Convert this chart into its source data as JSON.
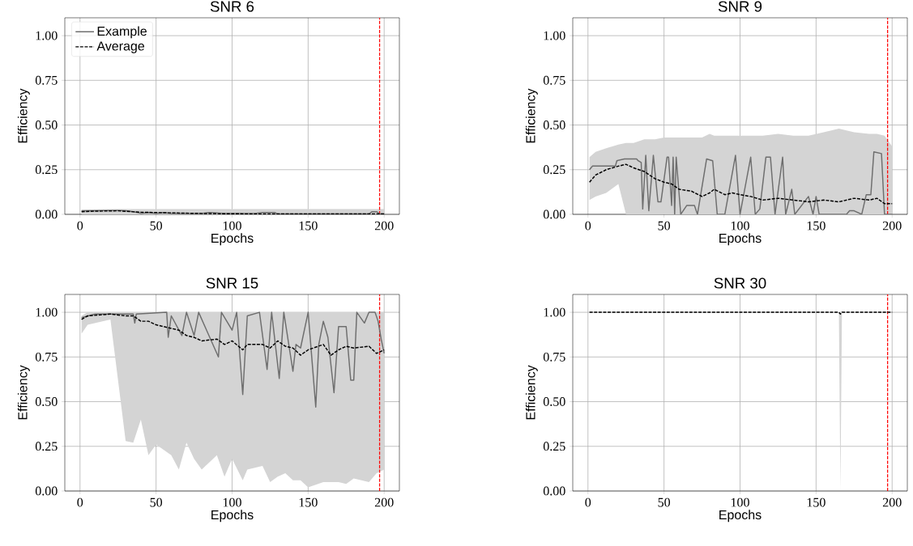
{
  "chart_data": [
    {
      "type": "line",
      "title": "SNR 6",
      "xlabel": "Epochs",
      "ylabel": "Efficiency",
      "xlim": [
        -10,
        210
      ],
      "ylim": [
        0,
        1.1
      ],
      "xticks": [
        0,
        50,
        100,
        150,
        200
      ],
      "yticks": [
        {
          "value": 0,
          "label": "0.00"
        },
        {
          "value": 0.25,
          "label": "0.25"
        },
        {
          "value": 0.5,
          "label": "0.50"
        },
        {
          "value": 0.75,
          "label": "0.75"
        },
        {
          "value": 1,
          "label": "1.00"
        }
      ],
      "grid": true,
      "legend": "top left",
      "ref_lines": [
        {
          "axis": "x",
          "value": 197,
          "color": "#ff0000",
          "line_style": "dashed"
        }
      ],
      "series": [
        {
          "name": "Example",
          "color": "#6e6e6e",
          "line_style": "solid",
          "x": [
            1,
            10,
            20,
            25,
            30,
            35,
            38,
            40,
            45,
            50,
            55,
            60,
            65,
            80,
            85,
            95,
            100,
            115,
            120,
            128,
            130,
            150,
            190,
            192,
            195,
            197,
            200
          ],
          "values": [
            0.02,
            0.02,
            0.022,
            0.022,
            0.02,
            0.015,
            0.01,
            0.005,
            0.01,
            0.005,
            0.01,
            0.005,
            0.005,
            0.005,
            0.01,
            0.005,
            0.005,
            0.005,
            0.01,
            0.01,
            0.002,
            0.002,
            0.002,
            0.015,
            0.015,
            0.002,
            0.002
          ]
        },
        {
          "name": "Average",
          "color": "#000000",
          "line_style": "dashed",
          "x": [
            1,
            10,
            25,
            40,
            60,
            80,
            100,
            150,
            200
          ],
          "values": [
            0.015,
            0.018,
            0.02,
            0.012,
            0.008,
            0.005,
            0.003,
            0.002,
            0.002
          ],
          "lower": [
            0,
            0,
            0,
            0,
            0,
            0,
            0,
            0,
            0
          ],
          "upper": [
            0.025,
            0.028,
            0.03,
            0.03,
            0.03,
            0.03,
            0.03,
            0.03,
            0.03
          ]
        }
      ]
    },
    {
      "type": "line",
      "title": "SNR 9",
      "xlabel": "Epochs",
      "ylabel": "Efficiency",
      "xlim": [
        -10,
        210
      ],
      "ylim": [
        0,
        1.1
      ],
      "xticks": [
        0,
        50,
        100,
        150,
        200
      ],
      "yticks": [
        {
          "value": 0,
          "label": "0.00"
        },
        {
          "value": 0.25,
          "label": "0.25"
        },
        {
          "value": 0.5,
          "label": "0.50"
        },
        {
          "value": 0.75,
          "label": "0.75"
        },
        {
          "value": 1,
          "label": "1.00"
        }
      ],
      "grid": true,
      "ref_lines": [
        {
          "axis": "x",
          "value": 197,
          "color": "#ff0000",
          "line_style": "dashed"
        }
      ],
      "series": [
        {
          "color": "#6e6e6e",
          "line_style": "solid",
          "x": [
            1,
            3,
            18,
            19,
            24,
            32,
            33,
            35,
            36,
            38,
            40,
            43,
            46,
            48,
            52,
            53,
            55,
            56,
            57,
            58,
            61,
            65,
            70,
            72,
            78,
            82,
            85,
            90,
            97,
            100,
            107,
            110,
            113,
            117,
            120,
            123,
            128,
            130,
            134,
            136,
            145,
            148,
            150,
            152,
            170,
            172,
            175,
            180,
            183,
            186,
            188,
            193,
            195,
            200
          ],
          "values": [
            0.25,
            0.27,
            0.27,
            0.3,
            0.31,
            0.31,
            0.3,
            0.29,
            0.03,
            0.33,
            0.02,
            0.33,
            0.07,
            0.07,
            0.32,
            0.32,
            0.05,
            0.32,
            0,
            0.32,
            0,
            0.05,
            0.05,
            0,
            0.31,
            0.3,
            0,
            0,
            0.33,
            0,
            0.32,
            0,
            0.03,
            0.32,
            0.32,
            0,
            0.32,
            0,
            0.14,
            0,
            0.1,
            0,
            0.1,
            0,
            0,
            0.02,
            0.02,
            0,
            0.11,
            0.11,
            0.35,
            0.34,
            0,
            0
          ]
        },
        {
          "color": "#000000",
          "line_style": "dashed",
          "x": [
            1,
            5,
            12,
            20,
            25,
            30,
            37,
            44,
            50,
            55,
            60,
            68,
            75,
            80,
            83,
            90,
            95,
            100,
            107,
            115,
            125,
            135,
            145,
            155,
            165,
            175,
            185,
            190,
            195,
            200
          ],
          "values": [
            0.18,
            0.22,
            0.25,
            0.27,
            0.28,
            0.26,
            0.24,
            0.2,
            0.18,
            0.17,
            0.14,
            0.13,
            0.1,
            0.12,
            0.14,
            0.11,
            0.12,
            0.11,
            0.1,
            0.08,
            0.09,
            0.08,
            0.07,
            0.08,
            0.07,
            0.09,
            0.08,
            0.09,
            0.06,
            0.06
          ],
          "lower": [
            0.08,
            0.1,
            0.12,
            0.17,
            0,
            0,
            0,
            0,
            0,
            0,
            0,
            0,
            0,
            0,
            0,
            0,
            0,
            0,
            0,
            0,
            0,
            0,
            0,
            0,
            0,
            0,
            0,
            0,
            0,
            0
          ],
          "upper": [
            0.32,
            0.35,
            0.37,
            0.39,
            0.4,
            0.4,
            0.42,
            0.42,
            0.43,
            0.43,
            0.43,
            0.43,
            0.43,
            0.45,
            0.44,
            0.44,
            0.44,
            0.44,
            0.44,
            0.44,
            0.45,
            0.44,
            0.44,
            0.46,
            0.48,
            0.46,
            0.45,
            0.45,
            0.44,
            0.38
          ]
        }
      ]
    },
    {
      "type": "line",
      "title": "SNR 15",
      "xlabel": "Epochs",
      "ylabel": "Efficiency",
      "xlim": [
        -10,
        210
      ],
      "ylim": [
        0,
        1.1
      ],
      "xticks": [
        0,
        50,
        100,
        150,
        200
      ],
      "yticks": [
        {
          "value": 0,
          "label": "0.00"
        },
        {
          "value": 0.25,
          "label": "0.25"
        },
        {
          "value": 0.5,
          "label": "0.50"
        },
        {
          "value": 0.75,
          "label": "0.75"
        },
        {
          "value": 1,
          "label": "1.00"
        }
      ],
      "grid": true,
      "ref_lines": [
        {
          "axis": "x",
          "value": 197,
          "color": "#ff0000",
          "line_style": "dashed"
        }
      ],
      "series": [
        {
          "color": "#6e6e6e",
          "line_style": "solid",
          "x": [
            1,
            10,
            35,
            36,
            37,
            57,
            58,
            60,
            67,
            70,
            75,
            78,
            91,
            93,
            100,
            103,
            107,
            110,
            118,
            123,
            126,
            131,
            134,
            140,
            142,
            145,
            150,
            155,
            157,
            160,
            163,
            167,
            170,
            175,
            178,
            180,
            182,
            187,
            190,
            194,
            196,
            198,
            200
          ],
          "values": [
            0.97,
            0.99,
            0.99,
            0.94,
            0.99,
            1,
            0.86,
            0.98,
            0.87,
            1,
            0.87,
            1,
            0.75,
            1,
            0.9,
            1,
            0.54,
            0.98,
            1,
            0.68,
            1,
            0.63,
            1,
            0.67,
            0.82,
            0.8,
            1,
            0.47,
            0.82,
            0.95,
            0.86,
            0.55,
            0.92,
            0.92,
            0.62,
            0.62,
            1,
            0.94,
            1,
            1,
            0.95,
            0.85,
            0.77
          ]
        },
        {
          "color": "#000000",
          "line_style": "dashed",
          "x": [
            1,
            5,
            20,
            30,
            35,
            40,
            45,
            50,
            60,
            65,
            70,
            75,
            80,
            90,
            95,
            100,
            107,
            110,
            120,
            125,
            130,
            135,
            140,
            145,
            150,
            160,
            165,
            170,
            175,
            180,
            190,
            195,
            200
          ],
          "values": [
            0.96,
            0.98,
            0.99,
            0.98,
            0.98,
            0.95,
            0.95,
            0.93,
            0.91,
            0.9,
            0.87,
            0.86,
            0.84,
            0.85,
            0.82,
            0.84,
            0.79,
            0.82,
            0.82,
            0.8,
            0.84,
            0.81,
            0.8,
            0.76,
            0.79,
            0.82,
            0.76,
            0.79,
            0.81,
            0.8,
            0.81,
            0.77,
            0.79
          ],
          "lower": [
            0.88,
            0.93,
            0.96,
            0.28,
            0.27,
            0.4,
            0.2,
            0.26,
            0.2,
            0.12,
            0.27,
            0.18,
            0.12,
            0.2,
            0.08,
            0.18,
            0.06,
            0.12,
            0.14,
            0.05,
            0.08,
            0.1,
            0.06,
            0.06,
            0.02,
            0.05,
            0.05,
            0.05,
            0.04,
            0.07,
            0.05,
            0.1,
            0.12
          ],
          "upper": [
            0.98,
            1,
            1,
            1,
            1,
            1,
            1,
            1,
            1,
            1,
            1,
            1,
            1,
            1,
            1,
            1,
            1,
            1,
            1,
            1,
            1,
            1,
            1,
            1,
            1,
            1,
            1,
            1,
            1,
            1,
            1,
            1,
            1
          ]
        }
      ]
    },
    {
      "type": "line",
      "title": "SNR 30",
      "xlabel": "Epochs",
      "ylabel": "Efficiency",
      "xlim": [
        -10,
        210
      ],
      "ylim": [
        0,
        1.1
      ],
      "xticks": [
        0,
        50,
        100,
        150,
        200
      ],
      "yticks": [
        {
          "value": 0,
          "label": "0.00"
        },
        {
          "value": 0.25,
          "label": "0.25"
        },
        {
          "value": 0.5,
          "label": "0.50"
        },
        {
          "value": 0.75,
          "label": "0.75"
        },
        {
          "value": 1,
          "label": "1.00"
        }
      ],
      "grid": true,
      "ref_lines": [
        {
          "axis": "x",
          "value": 197,
          "color": "#ff0000",
          "line_style": "dashed"
        }
      ],
      "series": [
        {
          "color": "#000000",
          "line_style": "dashed",
          "x": [
            1,
            165,
            166,
            167,
            200
          ],
          "values": [
            1,
            1,
            0.99,
            1,
            1
          ],
          "lower": [
            1,
            1,
            0,
            1,
            1
          ],
          "upper": [
            1,
            1,
            1,
            1,
            1
          ]
        }
      ]
    }
  ]
}
